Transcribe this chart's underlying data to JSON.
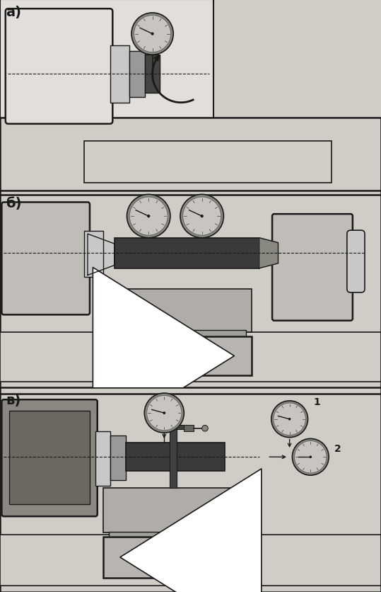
{
  "bg_color": "#d0cdc7",
  "panel_light": "#e2dfda",
  "dark": "#1a1a1a",
  "gray_mid": "#999999",
  "gray_light": "#c8c8c8",
  "gray_dark": "#555555",
  "bar_dark": "#3a3a3a",
  "headstock_fill": "#c0bdb8",
  "saddle_fill": "#b0ada8",
  "arrow_fill": "#b8b5b0",
  "white": "#ffffff",
  "labels": [
    "а)",
    "б)",
    "в)"
  ],
  "label1": "1",
  "label2": "2"
}
